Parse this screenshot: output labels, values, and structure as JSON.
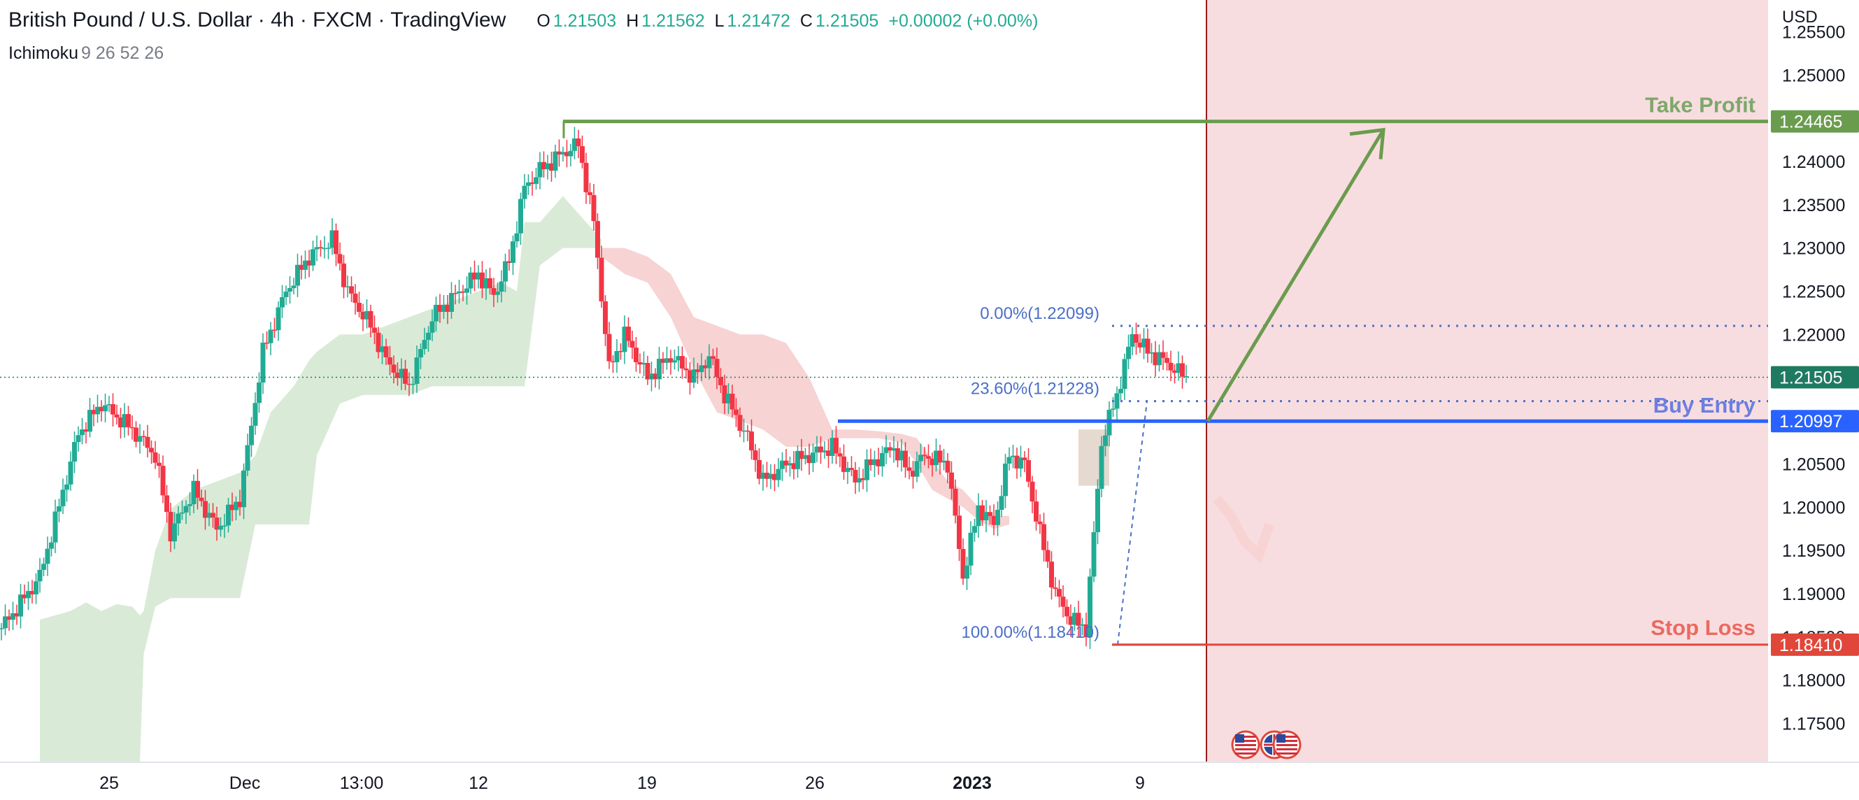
{
  "header": {
    "symbol": "British Pound / U.S. Dollar · 4h · FXCM · TradingView",
    "ohlc": [
      {
        "key": "O",
        "value": "1.21503"
      },
      {
        "key": "H",
        "value": "1.21562"
      },
      {
        "key": "L",
        "value": "1.21472"
      },
      {
        "key": "C",
        "value": "1.21505"
      }
    ],
    "change": "+0.00002 (+0.00%)"
  },
  "indicator": {
    "name": "Ichimoku",
    "params": "9 26 52 26"
  },
  "colors": {
    "up": "#22ab94",
    "down": "#f23645",
    "cloud_bull": "#d9ebd6",
    "cloud_bear": "#f7d3d3",
    "take_profit": "#6a9c4e",
    "buy_entry": "#2962ff",
    "stop_loss": "#e0473a",
    "fib": "#4b6fc7",
    "zone": "#f8dde0",
    "last_price": "#1f7a62"
  },
  "chart_data": {
    "type": "candlestick",
    "currency": "USD",
    "ylim": [
      1.1705,
      1.2587
    ],
    "y_ticks": [
      "1.25500",
      "1.25000",
      "1.24500",
      "1.24000",
      "1.23500",
      "1.23000",
      "1.22500",
      "1.22000",
      "1.21500",
      "1.21000",
      "1.20500",
      "1.20000",
      "1.19500",
      "1.19000",
      "1.18500",
      "1.18000",
      "1.17500"
    ],
    "x_ticks": [
      {
        "label": "25",
        "bold": false
      },
      {
        "label": "Dec",
        "bold": false
      },
      {
        "label": "13:00",
        "bold": false
      },
      {
        "label": "12",
        "bold": false
      },
      {
        "label": "19",
        "bold": false
      },
      {
        "label": "26",
        "bold": false
      },
      {
        "label": "2023",
        "bold": true
      },
      {
        "label": "9",
        "bold": false
      }
    ],
    "price_path": [
      [
        0,
        1.186
      ],
      [
        6,
        1.1895
      ],
      [
        10,
        1.192
      ],
      [
        14,
        1.1985
      ],
      [
        20,
        1.2085
      ],
      [
        26,
        1.212
      ],
      [
        34,
        1.209
      ],
      [
        40,
        1.206
      ],
      [
        44,
        1.197
      ],
      [
        50,
        1.202
      ],
      [
        56,
        1.1975
      ],
      [
        62,
        1.201
      ],
      [
        68,
        1.218
      ],
      [
        74,
        1.225
      ],
      [
        80,
        1.229
      ],
      [
        86,
        1.231
      ],
      [
        90,
        1.225
      ],
      [
        96,
        1.221
      ],
      [
        100,
        1.217
      ],
      [
        106,
        1.214
      ],
      [
        112,
        1.222
      ],
      [
        118,
        1.2245
      ],
      [
        124,
        1.227
      ],
      [
        128,
        1.2245
      ],
      [
        132,
        1.2285
      ],
      [
        136,
        1.237
      ],
      [
        140,
        1.239
      ],
      [
        146,
        1.241
      ],
      [
        150,
        1.242
      ],
      [
        154,
        1.233
      ],
      [
        158,
        1.216
      ],
      [
        162,
        1.22
      ],
      [
        168,
        1.215
      ],
      [
        174,
        1.2175
      ],
      [
        180,
        1.215
      ],
      [
        184,
        1.2175
      ],
      [
        188,
        1.213
      ],
      [
        194,
        1.208
      ],
      [
        198,
        1.203
      ],
      [
        204,
        1.205
      ],
      [
        210,
        1.206
      ],
      [
        216,
        1.207
      ],
      [
        222,
        1.203
      ],
      [
        226,
        1.205
      ],
      [
        232,
        1.207
      ],
      [
        236,
        1.204
      ],
      [
        240,
        1.206
      ],
      [
        246,
        1.205
      ],
      [
        250,
        1.192
      ],
      [
        254,
        1.2
      ],
      [
        258,
        1.198
      ],
      [
        262,
        1.206
      ],
      [
        266,
        1.205
      ],
      [
        270,
        1.197
      ],
      [
        274,
        1.19
      ],
      [
        278,
        1.187
      ],
      [
        282,
        1.186
      ],
      [
        286,
        1.2075
      ],
      [
        290,
        1.213
      ],
      [
        294,
        1.22
      ],
      [
        298,
        1.218
      ],
      [
        302,
        1.217
      ],
      [
        308,
        1.215
      ]
    ],
    "cloud": {
      "bullish": [
        [
          10,
          1.1705,
          1.187
        ],
        [
          14,
          1.1705,
          1.1875
        ],
        [
          18,
          1.1705,
          1.188
        ],
        [
          22,
          1.1705,
          1.189
        ],
        [
          26,
          1.1705,
          1.188
        ],
        [
          30,
          1.1705,
          1.1888
        ],
        [
          34,
          1.1705,
          1.1885
        ],
        [
          36,
          1.1705,
          1.1875
        ],
        [
          37,
          1.183,
          1.188
        ],
        [
          40,
          1.1885,
          1.195
        ],
        [
          44,
          1.1895,
          1.1998
        ],
        [
          50,
          1.1895,
          1.202
        ],
        [
          56,
          1.1895,
          1.203
        ],
        [
          62,
          1.1895,
          1.204
        ],
        [
          66,
          1.198,
          1.206
        ],
        [
          70,
          1.198,
          1.211
        ],
        [
          76,
          1.198,
          1.214
        ],
        [
          80,
          1.198,
          1.217
        ],
        [
          82,
          1.206,
          1.218
        ],
        [
          88,
          1.212,
          1.22
        ],
        [
          94,
          1.213,
          1.22
        ],
        [
          100,
          1.213,
          1.221
        ],
        [
          106,
          1.213,
          1.222
        ],
        [
          112,
          1.214,
          1.223
        ],
        [
          118,
          1.214,
          1.224
        ],
        [
          124,
          1.214,
          1.225
        ],
        [
          130,
          1.214,
          1.226
        ],
        [
          134,
          1.214,
          1.225
        ],
        [
          136,
          1.214,
          1.233
        ],
        [
          140,
          1.228,
          1.233
        ],
        [
          146,
          1.23,
          1.236
        ],
        [
          150,
          1.23,
          1.234
        ],
        [
          156,
          1.23,
          1.231
        ]
      ],
      "bearish": [
        [
          156,
          1.229,
          1.23
        ],
        [
          162,
          1.227,
          1.23
        ],
        [
          168,
          1.226,
          1.229
        ],
        [
          174,
          1.222,
          1.227
        ],
        [
          180,
          1.216,
          1.222
        ],
        [
          186,
          1.211,
          1.221
        ],
        [
          192,
          1.21,
          1.22
        ],
        [
          198,
          1.209,
          1.22
        ],
        [
          204,
          1.207,
          1.219
        ],
        [
          210,
          1.207,
          1.215
        ],
        [
          216,
          1.208,
          1.209
        ],
        [
          222,
          1.208,
          1.209
        ],
        [
          228,
          1.208,
          1.2088
        ],
        [
          234,
          1.2075,
          1.2085
        ],
        [
          238,
          1.205,
          1.208
        ],
        [
          242,
          1.202,
          1.2055
        ],
        [
          246,
          1.201,
          1.203
        ],
        [
          250,
          1.2,
          1.202
        ],
        [
          254,
          1.1985,
          1.2
        ],
        [
          258,
          1.1975,
          1.199
        ],
        [
          262,
          1.198,
          1.199
        ]
      ],
      "right_box": [
        280,
        288,
        1.2025,
        1.209
      ]
    },
    "fibonacci": [
      {
        "label": "0.00%(1.22099)",
        "value": 1.22099
      },
      {
        "label": "23.60%(1.21228)",
        "value": 1.21228
      },
      {
        "label": "100.00%(1.18410)",
        "value": 1.1841
      }
    ],
    "levels": [
      {
        "name": "Take Profit",
        "value": 1.24465,
        "label": "1.24465",
        "color": "#6a9c4e"
      },
      {
        "name": "Buy Entry",
        "value": 1.20997,
        "label": "1.20997",
        "color": "#2962ff"
      },
      {
        "name": "Stop Loss",
        "value": 1.1841,
        "label": "1.18410",
        "color": "#e0473a"
      }
    ],
    "last_price": {
      "value": 1.21505,
      "label": "1.21505"
    },
    "arrow": {
      "from": 1.20997,
      "to": 1.24465
    }
  }
}
